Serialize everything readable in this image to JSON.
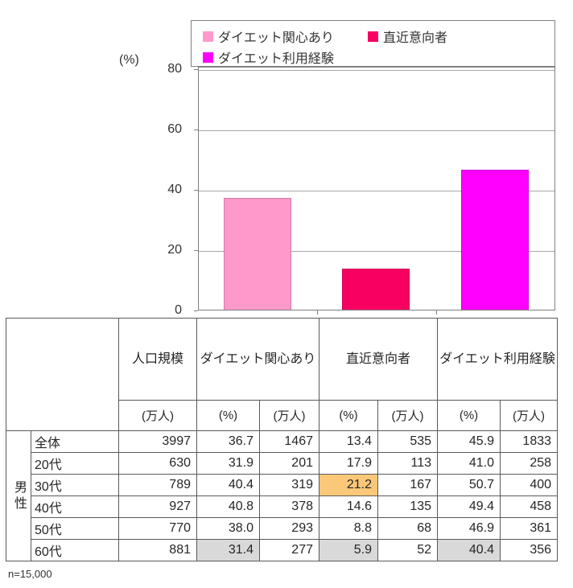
{
  "chart_data": {
    "type": "bar",
    "title": "",
    "unit_label": "(%)",
    "categories": [
      "ダイエット関心あり",
      "直近意向者",
      "ダイエット利用経験"
    ],
    "values": [
      36.7,
      13.4,
      45.9
    ],
    "colors": [
      "#FF99CC",
      "#F80062",
      "#FF00FF"
    ],
    "ylim": [
      0,
      80
    ],
    "yticks": [
      0,
      20,
      40,
      60,
      80
    ],
    "grid": true,
    "legend_position": "top",
    "legend": [
      {
        "label": "ダイエット関心あり",
        "color": "#FF99CC"
      },
      {
        "label": "直近意向者",
        "color": "#F80062"
      },
      {
        "label": "ダイエット利用経験",
        "color": "#FF00FF"
      }
    ]
  },
  "table": {
    "group_label": "男性",
    "col_groups": {
      "population": "人口規模",
      "interest": "ダイエット関心あり",
      "intent": "直近意向者",
      "experience": "ダイエット利用経験"
    },
    "units": [
      "(万人)",
      "(%)",
      "(万人)",
      "(%)",
      "(万人)",
      "(%)",
      "(万人)"
    ],
    "rows": [
      {
        "label": "全体",
        "values": [
          "3997",
          "36.7",
          "1467",
          "13.4",
          "535",
          "45.9",
          "1833"
        ]
      },
      {
        "label": "20代",
        "values": [
          "630",
          "31.9",
          "201",
          "17.9",
          "113",
          "41.0",
          "258"
        ]
      },
      {
        "label": "30代",
        "values": [
          "789",
          "40.4",
          "319",
          "21.2",
          "167",
          "50.7",
          "400"
        ],
        "highlights": {
          "3": "orange"
        }
      },
      {
        "label": "40代",
        "values": [
          "927",
          "40.8",
          "378",
          "14.6",
          "135",
          "49.4",
          "458"
        ]
      },
      {
        "label": "50代",
        "values": [
          "770",
          "38.0",
          "293",
          "8.8",
          "68",
          "46.9",
          "361"
        ]
      },
      {
        "label": "60代",
        "values": [
          "881",
          "31.4",
          "277",
          "5.9",
          "52",
          "40.4",
          "356"
        ],
        "highlights": {
          "1": "gray",
          "3": "gray",
          "5": "gray"
        }
      }
    ],
    "highlight_colors": {
      "orange": "#FAC878",
      "gray": "#D9D9D9"
    }
  },
  "footer": {
    "note": "n=15,000"
  }
}
